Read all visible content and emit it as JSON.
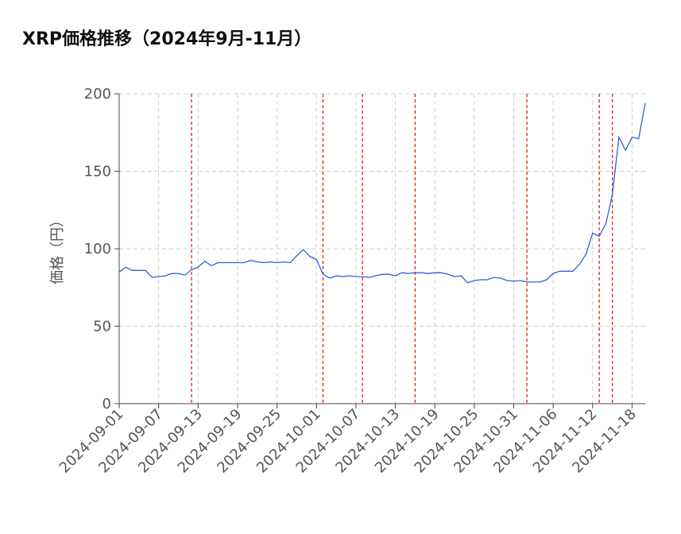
{
  "chart_data": {
    "type": "line",
    "title": "XRP価格推移（2024年9月-11月）",
    "y_label": "価格（円）",
    "x": [
      "2024-09-01",
      "2024-09-02",
      "2024-09-03",
      "2024-09-04",
      "2024-09-05",
      "2024-09-06",
      "2024-09-07",
      "2024-09-08",
      "2024-09-09",
      "2024-09-10",
      "2024-09-11",
      "2024-09-12",
      "2024-09-13",
      "2024-09-14",
      "2024-09-15",
      "2024-09-16",
      "2024-09-17",
      "2024-09-18",
      "2024-09-19",
      "2024-09-20",
      "2024-09-21",
      "2024-09-22",
      "2024-09-23",
      "2024-09-24",
      "2024-09-25",
      "2024-09-26",
      "2024-09-27",
      "2024-09-28",
      "2024-09-29",
      "2024-09-30",
      "2024-10-01",
      "2024-10-02",
      "2024-10-03",
      "2024-10-04",
      "2024-10-05",
      "2024-10-06",
      "2024-10-07",
      "2024-10-08",
      "2024-10-09",
      "2024-10-10",
      "2024-10-11",
      "2024-10-12",
      "2024-10-13",
      "2024-10-14",
      "2024-10-15",
      "2024-10-16",
      "2024-10-17",
      "2024-10-18",
      "2024-10-19",
      "2024-10-20",
      "2024-10-21",
      "2024-10-22",
      "2024-10-23",
      "2024-10-24",
      "2024-10-25",
      "2024-10-26",
      "2024-10-27",
      "2024-10-28",
      "2024-10-29",
      "2024-10-30",
      "2024-10-31",
      "2024-11-01",
      "2024-11-02",
      "2024-11-03",
      "2024-11-04",
      "2024-11-05",
      "2024-11-06",
      "2024-11-07",
      "2024-11-08",
      "2024-11-09",
      "2024-11-10",
      "2024-11-11",
      "2024-11-12",
      "2024-11-13",
      "2024-11-14",
      "2024-11-15",
      "2024-11-16",
      "2024-11-17",
      "2024-11-18",
      "2024-11-19",
      "2024-11-20"
    ],
    "series": [
      {
        "color": "#2f62d0",
        "values": [
          85,
          88,
          86,
          86,
          86,
          81.5,
          82,
          82.5,
          84,
          84,
          83,
          86.5,
          88,
          92,
          89,
          91,
          91,
          91,
          91,
          91,
          92.5,
          91.5,
          91,
          91.5,
          91,
          91.5,
          91,
          95.5,
          99.5,
          95,
          93,
          83.5,
          81,
          82.5,
          82,
          82.5,
          82,
          82,
          81.5,
          82.5,
          83.5,
          83.5,
          82.5,
          84.5,
          84,
          84.5,
          84.5,
          84,
          84.5,
          84.5,
          83.5,
          82,
          82.5,
          78,
          79.5,
          80,
          80,
          81.5,
          81,
          79.5,
          79,
          79.5,
          78.5,
          78.5,
          78.5,
          80,
          84,
          85.5,
          85.5,
          85.5,
          90,
          96.5,
          110,
          108,
          116,
          135,
          172,
          163.5,
          172,
          171,
          194
        ]
      }
    ],
    "events": {
      "color": "#e02020",
      "x": [
        "2024-09-12",
        "2024-10-02",
        "2024-10-08",
        "2024-10-16",
        "2024-11-02",
        "2024-11-13",
        "2024-11-15"
      ]
    },
    "xlim": [
      "2024-09-01",
      "2024-11-20"
    ],
    "xticks": [
      "2024-09-01",
      "2024-09-07",
      "2024-09-13",
      "2024-09-19",
      "2024-09-25",
      "2024-10-01",
      "2024-10-07",
      "2024-10-13",
      "2024-10-19",
      "2024-10-25",
      "2024-10-31",
      "2024-11-06",
      "2024-11-12",
      "2024-11-18"
    ],
    "ylim": [
      0,
      200
    ],
    "yticks": [
      0,
      50,
      100,
      150,
      200
    ],
    "grid": true
  }
}
